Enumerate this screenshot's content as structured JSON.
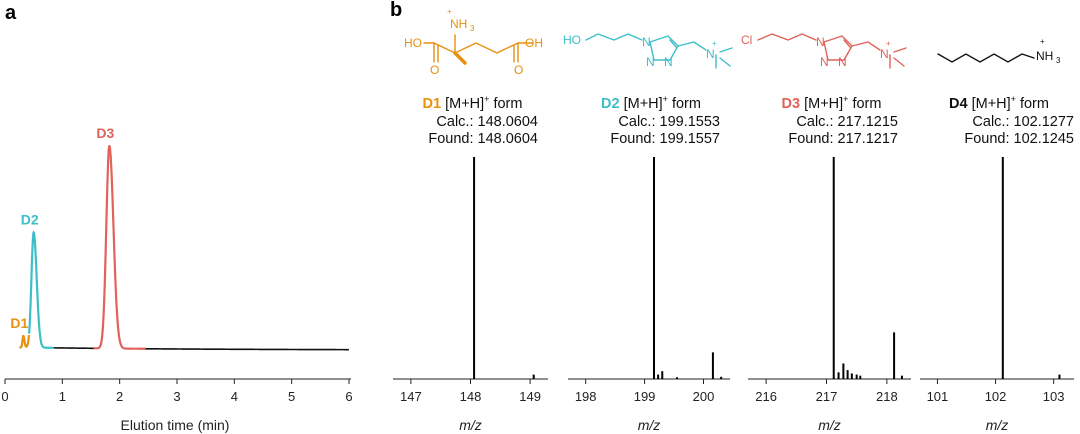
{
  "panel_labels": {
    "a": "a",
    "b": "b"
  },
  "colors": {
    "D1": "#E8900F",
    "D2": "#3CBFC8",
    "D3": "#E0625A",
    "D4": "#111111",
    "trace": "#111111"
  },
  "chart_data": [
    {
      "type": "line",
      "panel": "a",
      "xlabel": "Elution time (min)",
      "ylabel": "",
      "xlim": [
        0,
        6
      ],
      "xticks": [
        "0",
        "1",
        "2",
        "3",
        "4",
        "5",
        "6"
      ],
      "peaks": [
        {
          "name": "D1",
          "center": 0.32,
          "height": 0.05,
          "color": "#E8900F",
          "segment": [
            0.25,
            0.42
          ]
        },
        {
          "name": "D2",
          "center": 0.5,
          "height": 0.5,
          "color": "#3CBFC8",
          "segment": [
            0.42,
            0.85
          ]
        },
        {
          "name": "D3",
          "center": 1.82,
          "height": 0.88,
          "color": "#E0625A",
          "segment": [
            1.55,
            2.45
          ]
        }
      ],
      "baseline": {
        "x_start": 0.27,
        "x_end": 6.0
      }
    },
    {
      "type": "bar",
      "panel": "b",
      "compound": "D1",
      "ion_label": "[M+H]",
      "ion_sup": "+",
      "ion_suffix": "form",
      "calc": "Calc.: 148.0604",
      "found": "Found: 148.0604",
      "xlabel": "m/z",
      "xlim": [
        146.7,
        149.3
      ],
      "xticks": [
        "147",
        "148",
        "149"
      ],
      "peaks": [
        {
          "mz": 148.06,
          "intensity": 1.0
        },
        {
          "mz": 149.06,
          "intensity": 0.02
        }
      ]
    },
    {
      "type": "bar",
      "panel": "b",
      "compound": "D2",
      "ion_label": "[M+H]",
      "ion_sup": "+",
      "ion_suffix": "form",
      "calc": "Calc.: 199.1553",
      "found": "Found: 199.1557",
      "xlabel": "m/z",
      "xlim": [
        197.7,
        200.45
      ],
      "xticks": [
        "198",
        "199",
        "200"
      ],
      "peaks": [
        {
          "mz": 199.16,
          "intensity": 1.0
        },
        {
          "mz": 199.23,
          "intensity": 0.02
        },
        {
          "mz": 199.3,
          "intensity": 0.035
        },
        {
          "mz": 199.55,
          "intensity": 0.008
        },
        {
          "mz": 200.16,
          "intensity": 0.12
        },
        {
          "mz": 200.3,
          "intensity": 0.01
        }
      ]
    },
    {
      "type": "bar",
      "panel": "b",
      "compound": "D3",
      "ion_label": "[M+H]",
      "ion_sup": "+",
      "ion_suffix": "form",
      "calc": "Calc.: 217.1215",
      "found": "Found: 217.1217",
      "xlabel": "m/z",
      "xlim": [
        215.7,
        218.4
      ],
      "xticks": [
        "216",
        "217",
        "218"
      ],
      "peaks": [
        {
          "mz": 217.12,
          "intensity": 1.0
        },
        {
          "mz": 217.2,
          "intensity": 0.03
        },
        {
          "mz": 217.28,
          "intensity": 0.07
        },
        {
          "mz": 217.35,
          "intensity": 0.04
        },
        {
          "mz": 217.42,
          "intensity": 0.025
        },
        {
          "mz": 217.5,
          "intensity": 0.02
        },
        {
          "mz": 217.56,
          "intensity": 0.015
        },
        {
          "mz": 218.12,
          "intensity": 0.21
        },
        {
          "mz": 218.25,
          "intensity": 0.015
        }
      ]
    },
    {
      "type": "bar",
      "panel": "b",
      "compound": "D4",
      "ion_label": "[M+H]",
      "ion_sup": "+",
      "ion_suffix": "form",
      "calc": "Calc.: 102.1277",
      "found": "Found: 102.1245",
      "xlabel": "m/z",
      "xlim": [
        100.7,
        103.35
      ],
      "xticks": [
        "101",
        "102",
        "103"
      ],
      "peaks": [
        {
          "mz": 102.125,
          "intensity": 1.0
        },
        {
          "mz": 103.1,
          "intensity": 0.02
        }
      ]
    }
  ],
  "structures": {
    "D1": {
      "NH3": "NH",
      "NH3_sub": "3",
      "plus": "+",
      "HO": "HO",
      "OH": "OH",
      "O1": "O",
      "O2": "O"
    },
    "D2": {
      "HO": "HO",
      "N1": "N",
      "N2": "N",
      "N3": "N",
      "Nq": "N",
      "plus": "+"
    },
    "D3": {
      "Cl": "Cl",
      "N1": "N",
      "N2": "N",
      "N3": "N",
      "Nq": "N",
      "plus": "+"
    },
    "D4": {
      "NH3": "NH",
      "NH3_sub": "3",
      "plus": "+"
    }
  }
}
